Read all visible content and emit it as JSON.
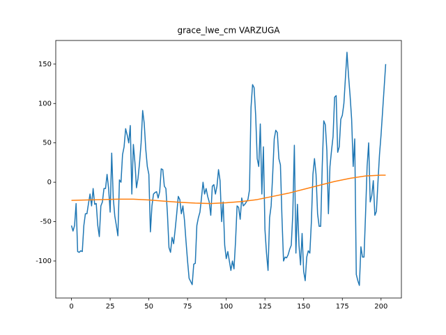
{
  "chart_data": {
    "type": "line",
    "title": "grace_lwe_cm VARZUGA",
    "x": [
      0,
      1,
      2,
      3,
      4,
      5,
      6,
      7,
      8,
      9,
      10,
      11,
      12,
      13,
      14,
      15,
      16,
      17,
      18,
      19,
      20,
      21,
      22,
      23,
      24,
      25,
      26,
      27,
      28,
      29,
      30,
      31,
      32,
      33,
      34,
      35,
      36,
      37,
      38,
      39,
      40,
      41,
      42,
      43,
      44,
      45,
      46,
      47,
      48,
      49,
      50,
      51,
      52,
      53,
      54,
      55,
      56,
      57,
      58,
      59,
      60,
      61,
      62,
      63,
      64,
      65,
      66,
      67,
      68,
      69,
      70,
      71,
      72,
      73,
      74,
      75,
      76,
      77,
      78,
      79,
      80,
      81,
      82,
      83,
      84,
      85,
      86,
      87,
      88,
      89,
      90,
      91,
      92,
      93,
      94,
      95,
      96,
      97,
      98,
      99,
      100,
      101,
      102,
      103,
      104,
      105,
      106,
      107,
      108,
      109,
      110,
      111,
      112,
      113,
      114,
      115,
      116,
      117,
      118,
      119,
      120,
      121,
      122,
      123,
      124,
      125,
      126,
      127,
      128,
      129,
      130,
      131,
      132,
      133,
      134,
      135,
      136,
      137,
      138,
      139,
      140,
      141,
      142,
      143,
      144,
      145,
      146,
      147,
      148,
      149,
      150,
      151,
      152,
      153,
      154,
      155,
      156,
      157,
      158,
      159,
      160,
      161,
      162,
      163,
      164,
      165,
      166,
      167,
      168,
      169,
      170,
      171,
      172,
      173,
      174,
      175,
      176,
      177,
      178,
      179,
      180,
      181,
      182,
      183,
      184,
      185,
      186,
      187,
      188,
      189,
      190,
      191,
      192,
      193,
      194,
      195,
      196,
      197,
      198,
      199,
      200,
      201,
      202,
      203
    ],
    "series": [
      {
        "color": "#1f77b4",
        "values": [
          -55,
          -62,
          -55,
          -27,
          -88,
          -89,
          -87,
          -88,
          -55,
          -40,
          -40,
          -27,
          -15,
          -30,
          -8,
          -28,
          -27,
          -55,
          -69,
          -30,
          -25,
          -8,
          -8,
          10,
          -8,
          -38,
          37,
          -20,
          -43,
          -55,
          -68,
          3,
          0,
          35,
          45,
          68,
          60,
          50,
          72,
          -15,
          48,
          25,
          -7,
          5,
          25,
          50,
          91,
          75,
          42,
          20,
          10,
          -63,
          -30,
          -15,
          -13,
          -12,
          -20,
          -12,
          17,
          16,
          -5,
          -8,
          -40,
          -83,
          -89,
          -70,
          -78,
          -60,
          -40,
          -18,
          -22,
          -40,
          -30,
          -48,
          -75,
          -100,
          -122,
          -126,
          -130,
          -104,
          -103,
          -55,
          -45,
          -38,
          -20,
          0,
          -15,
          -8,
          -18,
          -25,
          -42,
          -5,
          -3,
          -15,
          -5,
          16,
          2,
          -50,
          -25,
          -80,
          -97,
          -88,
          -100,
          -112,
          -100,
          -110,
          -75,
          -30,
          -32,
          -47,
          -20,
          -30,
          -28,
          -25,
          -22,
          -10,
          95,
          124,
          120,
          85,
          30,
          20,
          74,
          -15,
          45,
          -60,
          -90,
          -112,
          -45,
          -30,
          10,
          55,
          66,
          63,
          30,
          22,
          -45,
          -100,
          -95,
          -96,
          -92,
          -85,
          -80,
          -40,
          47,
          -90,
          -28,
          -80,
          -105,
          -65,
          -113,
          -125,
          -95,
          -87,
          -90,
          -50,
          10,
          30,
          10,
          -40,
          -56,
          -56,
          20,
          78,
          73,
          40,
          -40,
          20,
          40,
          58,
          108,
          110,
          38,
          45,
          80,
          85,
          100,
          133,
          165,
          135,
          110,
          80,
          20,
          55,
          -117,
          -125,
          -131,
          -82,
          -95,
          -95,
          -40,
          20,
          50,
          -25,
          -17,
          2,
          -42,
          -37,
          0,
          35,
          60,
          90,
          120,
          150
        ]
      },
      {
        "color": "#ff7f0e",
        "x": [
          0,
          10,
          20,
          30,
          40,
          50,
          60,
          70,
          80,
          90,
          100,
          110,
          120,
          130,
          140,
          150,
          160,
          170,
          180,
          190,
          200,
          203
        ],
        "values": [
          -23,
          -22.5,
          -22,
          -21.5,
          -21.5,
          -22.5,
          -24,
          -25.5,
          -26.5,
          -27,
          -26,
          -24.5,
          -22,
          -18,
          -14,
          -9,
          -4,
          1,
          5,
          8,
          9,
          9
        ]
      }
    ],
    "xlim": [
      -10.15,
      213.15
    ],
    "ylim": [
      -147,
      180
    ],
    "xticks": [
      0,
      25,
      50,
      75,
      100,
      125,
      150,
      175,
      200
    ],
    "yticks": [
      -100,
      -50,
      0,
      50,
      100,
      150
    ]
  }
}
